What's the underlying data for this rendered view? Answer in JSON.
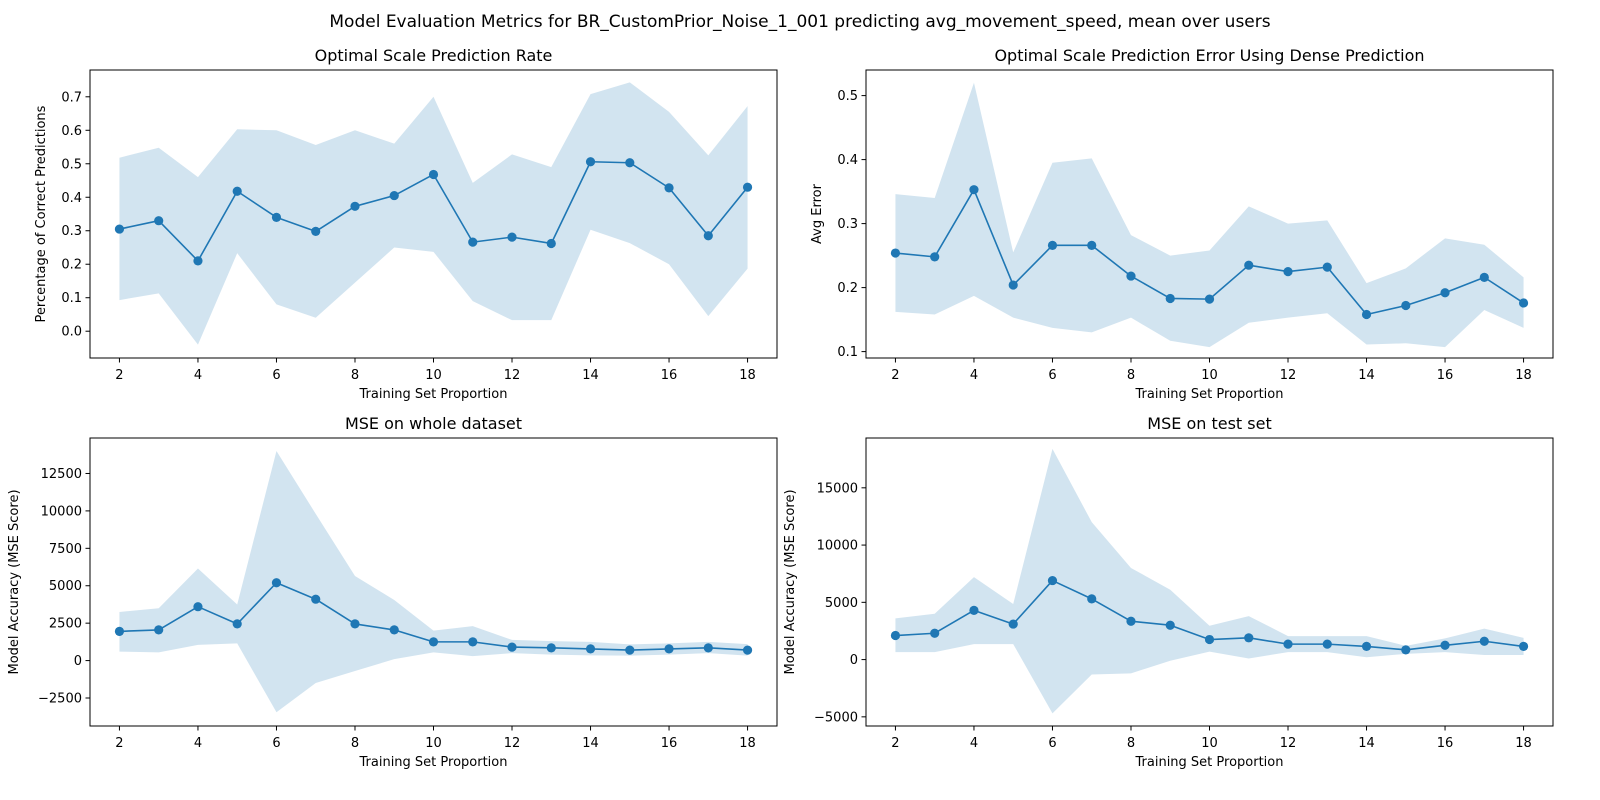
{
  "suptitle": "Model Evaluation Metrics for BR_CustomPrior_Noise_1_001 predicting avg_movement_speed, mean over users",
  "colors": {
    "line": "#1f77b4",
    "band": "#1f77b4"
  },
  "chart_data": [
    {
      "type": "line",
      "title": "Optimal Scale Prediction Rate",
      "xlabel": "Training Set Proportion",
      "ylabel": "Percentage of Correct Predictions",
      "xlim": [
        1.25,
        18.75
      ],
      "ylim": [
        -0.08,
        0.78
      ],
      "xticks": [
        2,
        4,
        6,
        8,
        10,
        12,
        14,
        16,
        18
      ],
      "yticks": [
        0.0,
        0.1,
        0.2,
        0.3,
        0.4,
        0.5,
        0.6,
        0.7
      ],
      "ytick_labels": [
        "0.0",
        "0.1",
        "0.2",
        "0.3",
        "0.4",
        "0.5",
        "0.6",
        "0.7"
      ],
      "x": [
        2,
        3,
        4,
        5,
        6,
        7,
        8,
        9,
        10,
        11,
        12,
        13,
        14,
        15,
        16,
        17,
        18
      ],
      "y": [
        0.305,
        0.33,
        0.21,
        0.418,
        0.34,
        0.298,
        0.373,
        0.405,
        0.468,
        0.266,
        0.281,
        0.262,
        0.506,
        0.503,
        0.428,
        0.285,
        0.43
      ],
      "lower": [
        0.093,
        0.113,
        -0.04,
        0.233,
        0.08,
        0.04,
        0.145,
        0.25,
        0.237,
        0.09,
        0.033,
        0.033,
        0.303,
        0.263,
        0.2,
        0.045,
        0.187
      ],
      "upper": [
        0.518,
        0.548,
        0.46,
        0.603,
        0.6,
        0.556,
        0.6,
        0.56,
        0.7,
        0.443,
        0.528,
        0.49,
        0.708,
        0.743,
        0.655,
        0.525,
        0.672
      ],
      "grid": false,
      "legend": "none"
    },
    {
      "type": "line",
      "title": "Optimal Scale Prediction Error Using Dense Prediction",
      "xlabel": "Training Set Proportion",
      "ylabel": "Avg Error",
      "xlim": [
        1.25,
        18.75
      ],
      "ylim": [
        0.09,
        0.54
      ],
      "xticks": [
        2,
        4,
        6,
        8,
        10,
        12,
        14,
        16,
        18
      ],
      "yticks": [
        0.1,
        0.2,
        0.3,
        0.4,
        0.5
      ],
      "ytick_labels": [
        "0.1",
        "0.2",
        "0.3",
        "0.4",
        "0.5"
      ],
      "x": [
        2,
        3,
        4,
        5,
        6,
        7,
        8,
        9,
        10,
        11,
        12,
        13,
        14,
        15,
        16,
        17,
        18
      ],
      "y": [
        0.254,
        0.248,
        0.353,
        0.204,
        0.266,
        0.266,
        0.218,
        0.183,
        0.182,
        0.235,
        0.225,
        0.232,
        0.158,
        0.172,
        0.192,
        0.216,
        0.176
      ],
      "lower": [
        0.162,
        0.158,
        0.187,
        0.153,
        0.137,
        0.13,
        0.153,
        0.117,
        0.107,
        0.145,
        0.153,
        0.16,
        0.111,
        0.113,
        0.107,
        0.165,
        0.137
      ],
      "upper": [
        0.346,
        0.34,
        0.52,
        0.255,
        0.395,
        0.402,
        0.282,
        0.25,
        0.258,
        0.327,
        0.3,
        0.305,
        0.207,
        0.23,
        0.277,
        0.267,
        0.216
      ],
      "grid": false,
      "legend": "none"
    },
    {
      "type": "line",
      "title": "MSE on whole dataset",
      "xlabel": "Training Set Proportion",
      "ylabel": "Model Accuracy (MSE Score)",
      "xlim": [
        1.25,
        18.75
      ],
      "ylim": [
        -4370,
        14870
      ],
      "xticks": [
        2,
        4,
        6,
        8,
        10,
        12,
        14,
        16,
        18
      ],
      "yticks": [
        -2500,
        0,
        2500,
        5000,
        7500,
        10000,
        12500
      ],
      "ytick_labels": [
        "−2500",
        "0",
        "2500",
        "5000",
        "7500",
        "10000",
        "12500"
      ],
      "x": [
        2,
        3,
        4,
        5,
        6,
        7,
        8,
        9,
        10,
        11,
        12,
        13,
        14,
        15,
        16,
        17,
        18
      ],
      "y": [
        1950,
        2050,
        3600,
        2450,
        5200,
        4100,
        2450,
        2050,
        1250,
        1250,
        900,
        850,
        780,
        700,
        780,
        850,
        700
      ],
      "lower": [
        600,
        550,
        1050,
        1150,
        -3450,
        -1500,
        -700,
        100,
        550,
        300,
        500,
        400,
        350,
        330,
        400,
        500,
        330
      ],
      "upper": [
        3250,
        3500,
        6150,
        3750,
        14000,
        9800,
        5650,
        4050,
        2000,
        2300,
        1380,
        1300,
        1250,
        1080,
        1150,
        1250,
        1100
      ],
      "grid": false,
      "legend": "none"
    },
    {
      "type": "line",
      "title": "MSE on test set",
      "xlabel": "Training Set Proportion",
      "ylabel": "Model Accuracy (MSE Score)",
      "xlim": [
        1.25,
        18.75
      ],
      "ylim": [
        -5800,
        19350
      ],
      "xticks": [
        2,
        4,
        6,
        8,
        10,
        12,
        14,
        16,
        18
      ],
      "yticks": [
        -5000,
        0,
        5000,
        10000,
        15000
      ],
      "ytick_labels": [
        "−5000",
        "0",
        "5000",
        "10000",
        "15000"
      ],
      "x": [
        2,
        3,
        4,
        5,
        6,
        7,
        8,
        9,
        10,
        11,
        12,
        13,
        14,
        15,
        16,
        17,
        18
      ],
      "y": [
        2100,
        2300,
        4300,
        3100,
        6900,
        5300,
        3350,
        3000,
        1750,
        1900,
        1350,
        1350,
        1150,
        850,
        1250,
        1600,
        1150
      ],
      "lower": [
        650,
        650,
        1350,
        1350,
        -4700,
        -1300,
        -1200,
        -100,
        700,
        100,
        650,
        650,
        200,
        500,
        650,
        400,
        400
      ],
      "upper": [
        3600,
        4000,
        7200,
        4850,
        18400,
        12000,
        8000,
        6100,
        2950,
        3800,
        2050,
        2050,
        2050,
        1200,
        1850,
        2700,
        1900
      ],
      "grid": false,
      "legend": "none"
    }
  ]
}
